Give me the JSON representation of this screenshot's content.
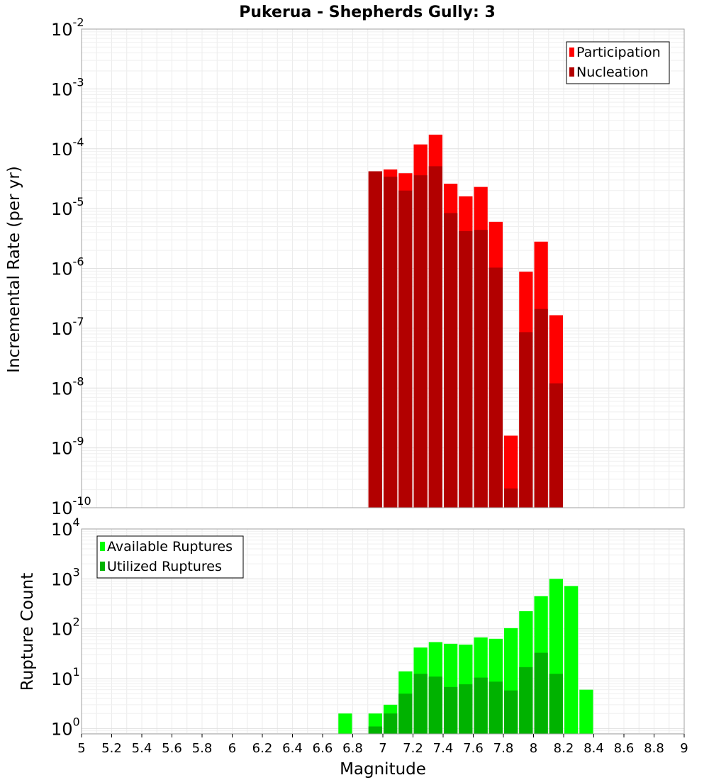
{
  "chart_data": [
    {
      "type": "bar",
      "title": "Pukerua - Shepherds Gully: 3",
      "ylabel": "Incremental Rate (per yr)",
      "xlabel": "",
      "xlim": [
        5,
        9
      ],
      "ylim": [
        1e-10,
        0.01
      ],
      "yscale": "log",
      "bin_width": 0.1,
      "grid": true,
      "legend_position": "top-right",
      "x": [
        6.95,
        7.05,
        7.15,
        7.25,
        7.35,
        7.45,
        7.55,
        7.65,
        7.75,
        7.85,
        7.95,
        8.05,
        8.15
      ],
      "series": [
        {
          "name": "Participation",
          "color": "#ff0000",
          "values": [
            4.2e-05,
            4.5e-05,
            3.9e-05,
            0.000118,
            0.000172,
            2.6e-05,
            1.6e-05,
            2.3e-05,
            6e-06,
            1.6e-09,
            8.8e-07,
            2.8e-06,
            1.65e-07
          ]
        },
        {
          "name": "Nucleation",
          "color": "#b20000",
          "values": [
            4.2e-05,
            3.4e-05,
            2e-05,
            3.6e-05,
            5.1e-05,
            8.4e-06,
            4.2e-06,
            4.4e-06,
            1.03e-06,
            2.1e-10,
            8.6e-08,
            2.1e-07,
            1.2e-08
          ]
        }
      ],
      "ytick_labels": [
        {
          "base": "10",
          "exp": "-10"
        },
        {
          "base": "10",
          "exp": "-9"
        },
        {
          "base": "10",
          "exp": "-8"
        },
        {
          "base": "10",
          "exp": "-7"
        },
        {
          "base": "10",
          "exp": "-6"
        },
        {
          "base": "10",
          "exp": "-5"
        },
        {
          "base": "10",
          "exp": "-4"
        },
        {
          "base": "10",
          "exp": "-3"
        },
        {
          "base": "10",
          "exp": "-2"
        }
      ]
    },
    {
      "type": "bar",
      "title": "",
      "ylabel": "Rupture Count",
      "xlabel": "Magnitude",
      "xlim": [
        5,
        9
      ],
      "ylim": [
        0.78,
        10000.0
      ],
      "yscale": "log",
      "bin_width": 0.1,
      "grid": true,
      "legend_position": "top-left",
      "x": [
        6.75,
        6.95,
        7.05,
        7.15,
        7.25,
        7.35,
        7.45,
        7.55,
        7.65,
        7.75,
        7.85,
        7.95,
        8.05,
        8.15,
        8.25,
        8.35
      ],
      "series": [
        {
          "name": "Available Ruptures",
          "color": "#00ff00",
          "values": [
            2,
            2,
            3,
            14,
            42,
            54,
            50,
            48,
            67,
            63,
            103,
            225,
            450,
            1000,
            720,
            6
          ]
        },
        {
          "name": "Utilized Ruptures",
          "color": "#00b200",
          "values": [
            null,
            1.1,
            2,
            5,
            12.5,
            11,
            6.8,
            7.7,
            10.5,
            8.7,
            5.8,
            17,
            33,
            12.5,
            null,
            null
          ]
        }
      ],
      "xtick_labels": [
        "5",
        "5.2",
        "5.4",
        "5.6",
        "5.8",
        "6",
        "6.2",
        "6.4",
        "6.6",
        "6.8",
        "7",
        "7.2",
        "7.4",
        "7.6",
        "7.8",
        "8",
        "8.2",
        "8.4",
        "8.6",
        "8.8",
        "9"
      ],
      "ytick_labels": [
        {
          "base": "10",
          "exp": "0"
        },
        {
          "base": "10",
          "exp": "1"
        },
        {
          "base": "10",
          "exp": "2"
        },
        {
          "base": "10",
          "exp": "3"
        },
        {
          "base": "10",
          "exp": "4"
        }
      ]
    }
  ]
}
